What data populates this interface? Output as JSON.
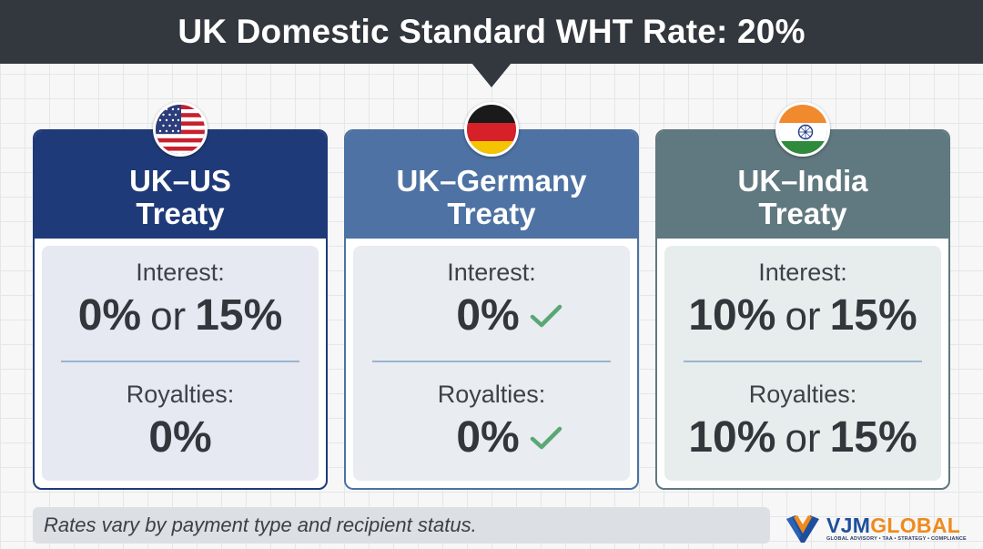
{
  "header": {
    "title": "UK Domestic Standard WHT Rate: 20%"
  },
  "cards": [
    {
      "title_line1": "UK–US",
      "title_line2": "Treaty",
      "flag": "usa-flag-icon",
      "head_color": "#1f3a78",
      "border_color": "#1f3a78",
      "body_color": "#e6e9f2",
      "interest_label": "Interest:",
      "interest_value_a": "0%",
      "interest_or": "or",
      "interest_value_b": "15%",
      "royalties_label": "Royalties:",
      "royalties_value": "0%"
    },
    {
      "title_line1": "UK–Germany",
      "title_line2": "Treaty",
      "flag": "germany-flag-icon",
      "head_color": "#4d72a3",
      "border_color": "#4d72a3",
      "body_color": "#e9ecf1",
      "interest_label": "Interest:",
      "interest_value": "0%",
      "royalties_label": "Royalties:",
      "royalties_value": "0%",
      "check_icon": "check-icon",
      "check_color": "#5aa774"
    },
    {
      "title_line1": "UK–India",
      "title_line2": "Treaty",
      "flag": "india-flag-icon",
      "head_color": "#60787f",
      "border_color": "#60787f",
      "body_color": "#e7eded",
      "interest_label": "Interest:",
      "interest_value_a": "10%",
      "interest_or": "or",
      "interest_value_b": "15%",
      "royalties_label": "Royalties:",
      "royalties_value_a": "10%",
      "royalties_or": "or",
      "royalties_value_b": "15%"
    }
  ],
  "footer": {
    "note": "Rates vary by payment type and recipient status."
  },
  "logo": {
    "name_part1": "VJM",
    "name_part2": "GLOBAL",
    "tagline": "GLOBAL ADVISORY • TAA • STRATEGY • COMPLIANCE",
    "primary_color": "#1f4f9c",
    "accent_color": "#f08a1c"
  }
}
